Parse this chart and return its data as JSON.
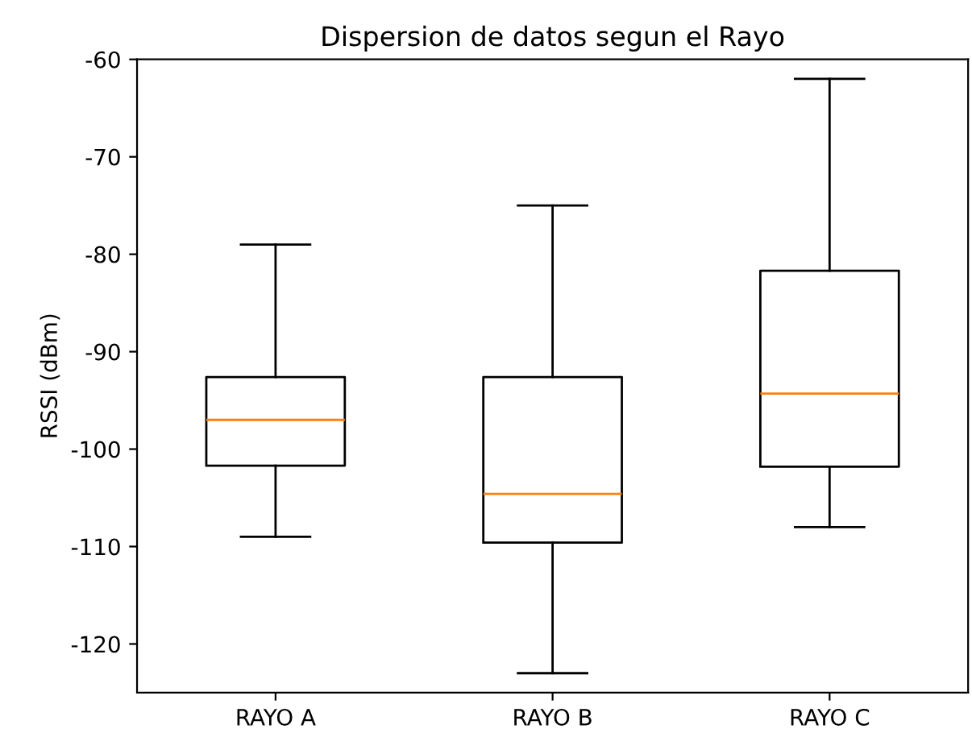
{
  "chart_data": {
    "type": "box",
    "title": "Dispersion de datos segun el Rayo",
    "ylabel": "RSSI (dBm)",
    "categories": [
      "RAYO A",
      "RAYO B",
      "RAYO C"
    ],
    "boxes": [
      {
        "low": -109,
        "q1": -101.7,
        "median": -97,
        "q3": -92.6,
        "high": -79
      },
      {
        "low": -123,
        "q1": -109.6,
        "median": -104.6,
        "q3": -92.6,
        "high": -75
      },
      {
        "low": -108,
        "q1": -101.8,
        "median": -94.3,
        "q3": -81.7,
        "high": -62
      }
    ],
    "color": "#000000",
    "ylim": [
      -125,
      -60
    ],
    "yticks": [
      -120,
      -110,
      -100,
      -90,
      -80,
      -70,
      -60
    ],
    "grid": false
  }
}
